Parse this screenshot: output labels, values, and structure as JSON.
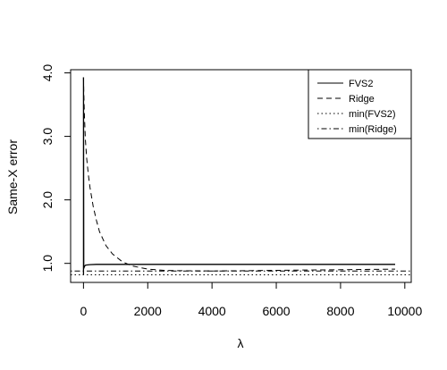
{
  "chart_data": {
    "type": "line",
    "title": "",
    "xlabel": "λ",
    "ylabel": "Same-X error",
    "xlim": [
      -400,
      10200
    ],
    "ylim": [
      0.7,
      4.05
    ],
    "x_ticks": [
      0,
      2000,
      4000,
      6000,
      8000,
      10000
    ],
    "x_tick_labels": [
      "0",
      "2000",
      "4000",
      "6000",
      "8000",
      "10000"
    ],
    "y_ticks": [
      1.0,
      2.0,
      3.0,
      4.0
    ],
    "y_tick_labels": [
      "1.0",
      "2.0",
      "3.0",
      "4.0"
    ],
    "grid": false,
    "legend_position": "top-right",
    "series": [
      {
        "name": "FVS2",
        "line_style": "solid",
        "x": [
          0,
          0,
          10,
          30,
          60,
          100,
          200,
          400,
          1000,
          3000,
          6000,
          9700
        ],
        "y": [
          0.82,
          3.93,
          0.92,
          0.955,
          0.97,
          0.975,
          0.98,
          0.985,
          0.985,
          0.985,
          0.985,
          0.985
        ]
      },
      {
        "name": "Ridge",
        "line_style": "dashed",
        "x": [
          0,
          10,
          30,
          60,
          100,
          150,
          200,
          300,
          400,
          500,
          700,
          900,
          1200,
          1500,
          2000,
          2500,
          3000,
          4000,
          5000,
          6000,
          7000,
          8000,
          9000,
          9700
        ],
        "y": [
          3.93,
          3.7,
          3.3,
          2.95,
          2.65,
          2.4,
          2.2,
          1.9,
          1.68,
          1.5,
          1.28,
          1.15,
          1.03,
          0.96,
          0.91,
          0.89,
          0.885,
          0.88,
          0.885,
          0.89,
          0.895,
          0.9,
          0.905,
          0.91
        ]
      },
      {
        "name": "min(FVS2)",
        "line_style": "dotted",
        "y": 0.82
      },
      {
        "name": "min(Ridge)",
        "line_style": "dotdash",
        "y": 0.88
      }
    ]
  }
}
